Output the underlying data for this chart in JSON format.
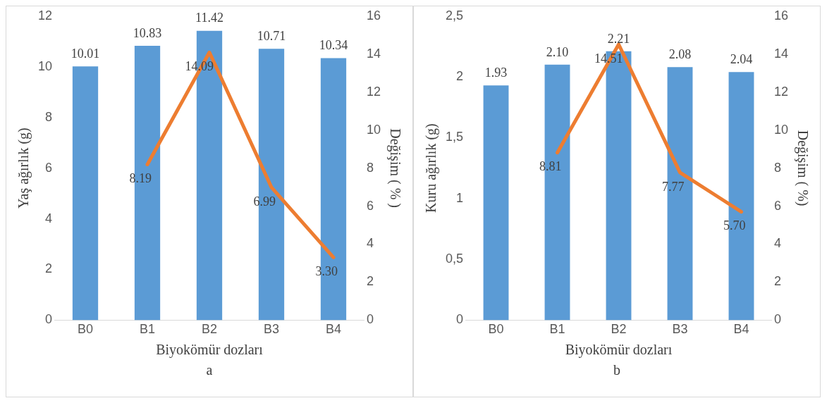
{
  "chart_data": [
    {
      "type": "bar",
      "xlabel": "Biyokömür dozları",
      "ylabel": "Yaş ağırlık (g)",
      "y2label": "Değişim ( % )",
      "annotations": [
        "a"
      ],
      "categories": [
        "B0",
        "B1",
        "B2",
        "B3",
        "B4"
      ],
      "ylim": [
        0,
        12
      ],
      "yticks": [
        0,
        2,
        4,
        6,
        8,
        10,
        12
      ],
      "y2lim": [
        0,
        16
      ],
      "y2ticks": [
        0,
        2,
        4,
        6,
        8,
        10,
        12,
        14,
        16
      ],
      "grid": false,
      "legend": false,
      "data_labels": true,
      "series": [
        {
          "color": "#5b9bd5",
          "values": [
            10.01,
            10.83,
            11.42,
            10.71,
            10.34
          ],
          "value_labels": [
            "10.01",
            "10.83",
            "11.42",
            "10.71",
            "10.34"
          ]
        },
        {
          "type": "line",
          "axis": "y2",
          "color": "#ed7d31",
          "marker": "none",
          "values": [
            null,
            8.19,
            14.09,
            6.99,
            3.3
          ],
          "value_labels": [
            null,
            "8.19",
            "14.09",
            "6.99",
            "3.30"
          ]
        }
      ]
    },
    {
      "type": "bar",
      "xlabel": "Biyokömür dozları",
      "ylabel": "Kuru ağırlık (g)",
      "y2label": "Değişim ( %)",
      "annotations": [
        "b"
      ],
      "categories": [
        "B0",
        "B1",
        "B2",
        "B3",
        "B4"
      ],
      "ylim": [
        0,
        2.5
      ],
      "yticks": [
        0,
        {
          "value": 0.5,
          "label": "0,5"
        },
        1,
        {
          "value": 1.5,
          "label": "1,5"
        },
        2,
        {
          "value": 2.5,
          "label": "2,5"
        }
      ],
      "y2lim": [
        0,
        16
      ],
      "y2ticks": [
        0,
        2,
        4,
        6,
        8,
        10,
        12,
        14,
        16
      ],
      "grid": false,
      "legend": false,
      "data_labels": true,
      "series": [
        {
          "color": "#5b9bd5",
          "values": [
            1.93,
            2.1,
            2.21,
            2.08,
            2.04
          ],
          "value_labels": [
            "1.93",
            "2.10",
            "2.21",
            "2.08",
            "2.04"
          ]
        },
        {
          "type": "line",
          "axis": "y2",
          "color": "#ed7d31",
          "marker": "none",
          "values": [
            null,
            8.81,
            14.51,
            7.77,
            5.7
          ],
          "value_labels": [
            null,
            "8.81",
            "14.51",
            "7.77",
            "5.70"
          ]
        }
      ]
    }
  ]
}
